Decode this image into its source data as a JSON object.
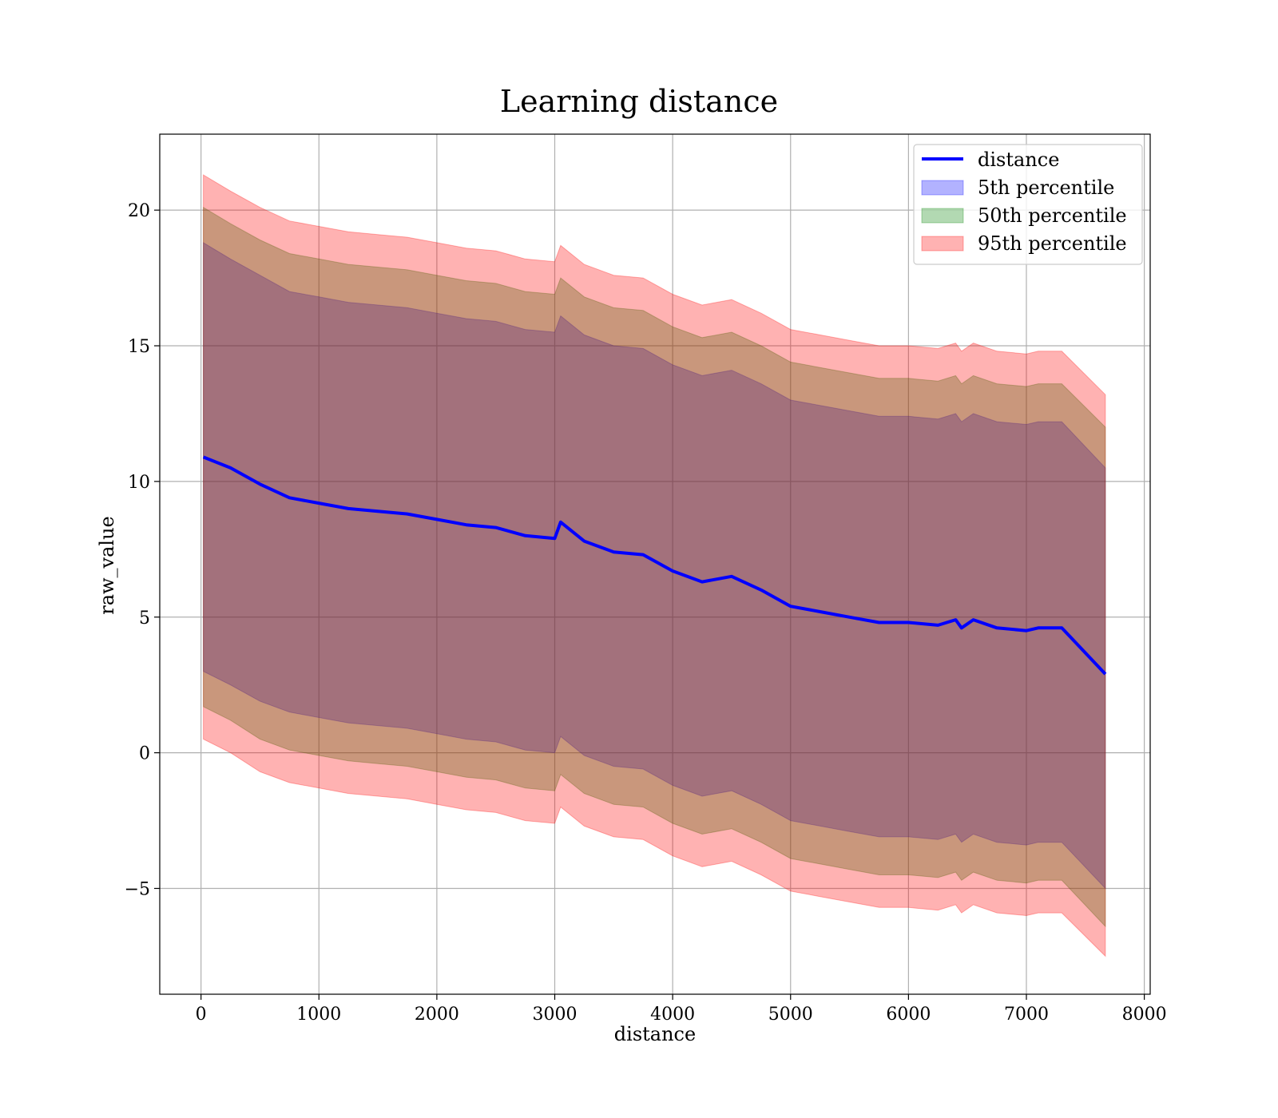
{
  "chart_data": {
    "type": "line",
    "title": "Learning distance",
    "xlabel": "distance",
    "ylabel": "raw_value",
    "xlim": [
      -350,
      8050
    ],
    "ylim": [
      -8.9,
      22.8
    ],
    "xticks": [
      0,
      1000,
      2000,
      3000,
      4000,
      5000,
      6000,
      7000,
      8000
    ],
    "xtick_labels": [
      "0",
      "1000",
      "2000",
      "3000",
      "4000",
      "5000",
      "6000",
      "7000",
      "8000"
    ],
    "yticks": [
      -5,
      0,
      5,
      10,
      15,
      20
    ],
    "ytick_labels": [
      "−5",
      "0",
      "5",
      "10",
      "15",
      "20"
    ],
    "grid": true,
    "legend_position": "top-right",
    "colors": {
      "line": "#0000ff",
      "p5": "#0000ff",
      "p50": "#008000",
      "p95": "#ff0000"
    },
    "band_opacity": 0.3,
    "x": [
      20,
      250,
      500,
      750,
      1000,
      1250,
      1500,
      1750,
      2000,
      2250,
      2500,
      2750,
      3000,
      3050,
      3250,
      3500,
      3750,
      4000,
      4250,
      4500,
      4750,
      5000,
      5250,
      5500,
      5750,
      6000,
      6250,
      6400,
      6450,
      6550,
      6750,
      7000,
      7100,
      7300,
      7670
    ],
    "series": [
      {
        "name": "distance",
        "kind": "line",
        "values": [
          10.9,
          10.5,
          9.9,
          9.4,
          9.2,
          9.0,
          8.9,
          8.8,
          8.6,
          8.4,
          8.3,
          8.0,
          7.9,
          8.5,
          7.8,
          7.4,
          7.3,
          6.7,
          6.3,
          6.5,
          6.0,
          5.4,
          5.2,
          5.0,
          4.8,
          4.8,
          4.7,
          4.9,
          4.6,
          4.9,
          4.6,
          4.5,
          4.6,
          4.6,
          2.9
        ]
      },
      {
        "name": "5th percentile",
        "kind": "band",
        "upper": [
          18.8,
          18.2,
          17.6,
          17.0,
          16.8,
          16.6,
          16.5,
          16.4,
          16.2,
          16.0,
          15.9,
          15.6,
          15.5,
          16.1,
          15.4,
          15.0,
          14.9,
          14.3,
          13.9,
          14.1,
          13.6,
          13.0,
          12.8,
          12.6,
          12.4,
          12.4,
          12.3,
          12.5,
          12.2,
          12.5,
          12.2,
          12.1,
          12.2,
          12.2,
          10.5
        ],
        "lower": [
          3.0,
          2.5,
          1.9,
          1.5,
          1.3,
          1.1,
          1.0,
          0.9,
          0.7,
          0.5,
          0.4,
          0.1,
          0.0,
          0.6,
          -0.1,
          -0.5,
          -0.6,
          -1.2,
          -1.6,
          -1.4,
          -1.9,
          -2.5,
          -2.7,
          -2.9,
          -3.1,
          -3.1,
          -3.2,
          -3.0,
          -3.3,
          -3.0,
          -3.3,
          -3.4,
          -3.3,
          -3.3,
          -5.0
        ]
      },
      {
        "name": "50th percentile",
        "kind": "band",
        "upper": [
          20.1,
          19.5,
          18.9,
          18.4,
          18.2,
          18.0,
          17.9,
          17.8,
          17.6,
          17.4,
          17.3,
          17.0,
          16.9,
          17.5,
          16.8,
          16.4,
          16.3,
          15.7,
          15.3,
          15.5,
          15.0,
          14.4,
          14.2,
          14.0,
          13.8,
          13.8,
          13.7,
          13.9,
          13.6,
          13.9,
          13.6,
          13.5,
          13.6,
          13.6,
          12.0
        ],
        "lower": [
          1.7,
          1.2,
          0.5,
          0.1,
          -0.1,
          -0.3,
          -0.4,
          -0.5,
          -0.7,
          -0.9,
          -1.0,
          -1.3,
          -1.4,
          -0.8,
          -1.5,
          -1.9,
          -2.0,
          -2.6,
          -3.0,
          -2.8,
          -3.3,
          -3.9,
          -4.1,
          -4.3,
          -4.5,
          -4.5,
          -4.6,
          -4.4,
          -4.7,
          -4.4,
          -4.7,
          -4.8,
          -4.7,
          -4.7,
          -6.4
        ]
      },
      {
        "name": "95th percentile",
        "kind": "band",
        "upper": [
          21.3,
          20.7,
          20.1,
          19.6,
          19.4,
          19.2,
          19.1,
          19.0,
          18.8,
          18.6,
          18.5,
          18.2,
          18.1,
          18.7,
          18.0,
          17.6,
          17.5,
          16.9,
          16.5,
          16.7,
          16.2,
          15.6,
          15.4,
          15.2,
          15.0,
          15.0,
          14.9,
          15.1,
          14.8,
          15.1,
          14.8,
          14.7,
          14.8,
          14.8,
          13.2
        ],
        "lower": [
          0.5,
          0.0,
          -0.7,
          -1.1,
          -1.3,
          -1.5,
          -1.6,
          -1.7,
          -1.9,
          -2.1,
          -2.2,
          -2.5,
          -2.6,
          -2.0,
          -2.7,
          -3.1,
          -3.2,
          -3.8,
          -4.2,
          -4.0,
          -4.5,
          -5.1,
          -5.3,
          -5.5,
          -5.7,
          -5.7,
          -5.8,
          -5.6,
          -5.9,
          -5.6,
          -5.9,
          -6.0,
          -5.9,
          -5.9,
          -7.5
        ]
      }
    ]
  }
}
